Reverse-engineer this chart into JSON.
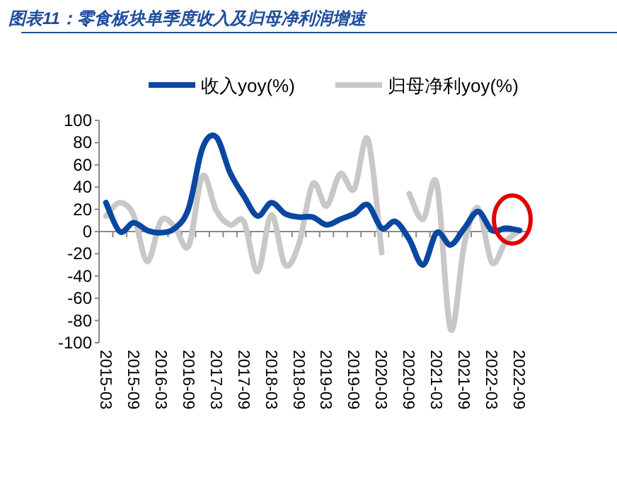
{
  "chart_data": {
    "type": "line",
    "title": "图表11：零食板块单季度收入及归母净利润增速",
    "categories": [
      "2015-03",
      null,
      "2015-09",
      null,
      "2016-03",
      null,
      "2016-09",
      null,
      "2017-03",
      null,
      "2017-09",
      null,
      "2018-03",
      null,
      "2018-09",
      null,
      "2019-03",
      null,
      "2019-09",
      null,
      "2020-03",
      null,
      "2020-09",
      null,
      "2021-03",
      null,
      "2021-09",
      null,
      "2022-03",
      null,
      "2022-09"
    ],
    "series": [
      {
        "name": "收入yoy(%)",
        "color": "#0a47a0",
        "values": [
          26,
          0,
          8,
          1,
          -1,
          3,
          21,
          75,
          85,
          53,
          32,
          14,
          26,
          16,
          13,
          13,
          6,
          11,
          16,
          24,
          3,
          9,
          -7,
          -30,
          -1,
          -12,
          3,
          18,
          1,
          3,
          1
        ]
      },
      {
        "name": "归母净利yoy(%)",
        "color": "#c8c8c8",
        "values": [
          14,
          26,
          15,
          -27,
          10,
          4,
          -13,
          50,
          19,
          6,
          9,
          -36,
          15,
          -30,
          -11,
          43,
          23,
          52,
          38,
          83,
          -19,
          null,
          34,
          11,
          43,
          -88,
          -11,
          21,
          -28,
          -9,
          1
        ]
      }
    ],
    "ylim": [
      -100,
      100
    ],
    "yticks": [
      -100,
      -80,
      -60,
      -40,
      -20,
      0,
      20,
      40,
      60,
      80,
      100
    ],
    "legend": "top",
    "line_style": "solid",
    "marker": "none"
  }
}
